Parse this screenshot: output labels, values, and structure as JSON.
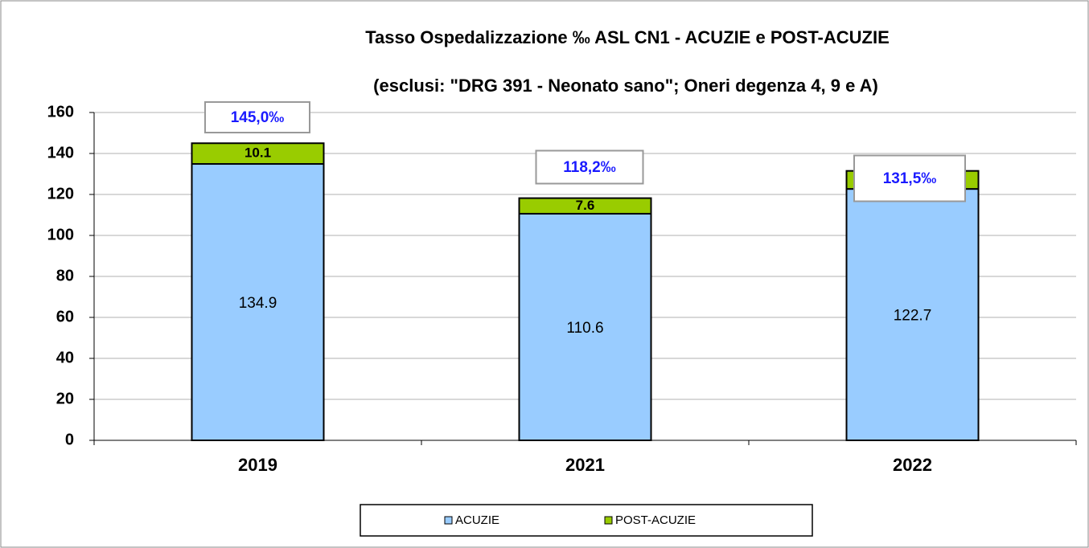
{
  "chart_data": {
    "type": "stacked_bar",
    "title": "Tasso Ospedalizzazione ‰ ASL CN1 - ACUZIE e POST-ACUZIE",
    "subtitle": "(esclusi: \"DRG 391 - Neonato sano\"; Oneri degenza 4, 9 e A)",
    "categories": [
      "2019",
      "2021",
      "2022"
    ],
    "series": [
      {
        "name": "ACUZIE",
        "color": "#99ccff",
        "values": [
          134.9,
          110.6,
          122.7
        ]
      },
      {
        "name": "POST-ACUZIE",
        "color": "#99cc00",
        "values": [
          10.1,
          7.6,
          8.8
        ]
      }
    ],
    "totals": {
      "values": [
        145.0,
        118.2,
        131.5
      ],
      "value_labels": [
        "145,0‰",
        "118,2‰",
        "131,5‰"
      ],
      "color": "#1a1aff"
    },
    "ylim": [
      0,
      160
    ],
    "yticks": [
      0,
      20,
      40,
      60,
      80,
      100,
      120,
      140,
      160
    ],
    "grid": true,
    "legend": "bottom"
  }
}
